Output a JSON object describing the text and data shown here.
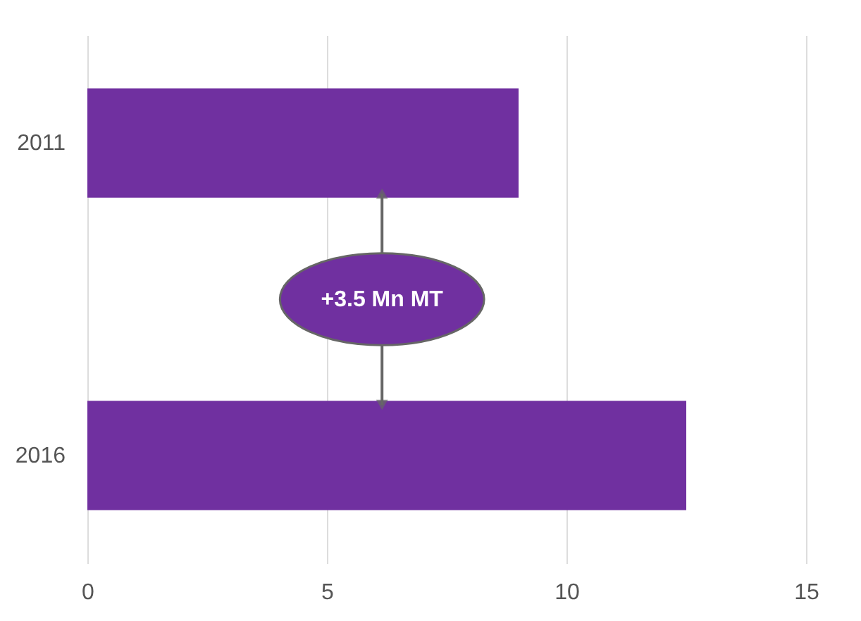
{
  "chart_data": {
    "type": "bar",
    "orientation": "horizontal",
    "categories": [
      "2011",
      "2016"
    ],
    "values": [
      9,
      12.5
    ],
    "color": "#7030a0",
    "xlim": [
      0,
      15
    ],
    "xticks": [
      0,
      5,
      10,
      15
    ],
    "grid": "x",
    "annotations": [
      "+3.5 Mn MT"
    ]
  }
}
